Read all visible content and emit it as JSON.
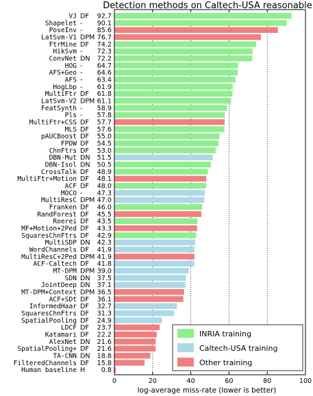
{
  "chart_data": {
    "type": "bar",
    "orientation": "horizontal",
    "title": "Detection methods on Caltech-USA reasonable set",
    "xlabel": "log-average miss-rate (lower is better)",
    "xlim": [
      0,
      100
    ],
    "xticks": [
      "0",
      "20",
      "40",
      "60",
      "80",
      "100"
    ],
    "grid": "dotted vertical lines at 20, 40, 60, 80",
    "legend_position": "bottom-right",
    "legend": [
      {
        "key": "inria",
        "label": "INRIA training",
        "color": "#90ee90"
      },
      {
        "key": "caltech",
        "label": "Caltech-USA training",
        "color": "#add8e6"
      },
      {
        "key": "other",
        "label": "Other training",
        "color": "#f08080"
      }
    ],
    "rows": [
      {
        "name": "VJ",
        "feature": "DF",
        "value": 92.7,
        "value_label": "92.7",
        "training": "inria"
      },
      {
        "name": "Shapelet",
        "feature": "-",
        "value": 90.1,
        "value_label": "90.1",
        "training": "inria"
      },
      {
        "name": "PoseInv",
        "feature": "-",
        "value": 85.6,
        "value_label": "85.6",
        "training": "other"
      },
      {
        "name": "LatSvm-V1",
        "feature": "DPM",
        "value": 76.7,
        "value_label": "76.7",
        "training": "other"
      },
      {
        "name": "FtrMine",
        "feature": "DF",
        "value": 74.2,
        "value_label": "74.2",
        "training": "inria"
      },
      {
        "name": "HikSvm",
        "feature": "-",
        "value": 72.3,
        "value_label": "72.3",
        "training": "inria"
      },
      {
        "name": "ConvNet",
        "feature": "DN",
        "value": 72.2,
        "value_label": "72.2",
        "training": "inria"
      },
      {
        "name": "HOG",
        "feature": "-",
        "value": 64.7,
        "value_label": "64.7",
        "training": "inria"
      },
      {
        "name": "AFS+Geo",
        "feature": "-",
        "value": 64.6,
        "value_label": "64.6",
        "training": "inria"
      },
      {
        "name": "AFS",
        "feature": "-",
        "value": 63.4,
        "value_label": "63.4",
        "training": "inria"
      },
      {
        "name": "HogLbp",
        "feature": "-",
        "value": 61.9,
        "value_label": "61.9",
        "training": "inria"
      },
      {
        "name": "MultiFtr",
        "feature": "DF",
        "value": 61.8,
        "value_label": "61.8",
        "training": "inria"
      },
      {
        "name": "LatSvm-V2",
        "feature": "DPM",
        "value": 61.1,
        "value_label": "61.1",
        "training": "inria"
      },
      {
        "name": "FeatSynth",
        "feature": "-",
        "value": 58.9,
        "value_label": "58.9",
        "training": "inria"
      },
      {
        "name": "Pls",
        "feature": "-",
        "value": 57.8,
        "value_label": "57.8",
        "training": "inria"
      },
      {
        "name": "MultiFtr+CSS",
        "feature": "DF",
        "value": 57.7,
        "value_label": "57.7",
        "training": "other"
      },
      {
        "name": "MLS",
        "feature": "DF",
        "value": 57.6,
        "value_label": "57.6",
        "training": "inria"
      },
      {
        "name": "pAUCBoost",
        "feature": "DF",
        "value": 55.0,
        "value_label": "55.0",
        "training": "inria"
      },
      {
        "name": "FPDW",
        "feature": "DF",
        "value": 54.5,
        "value_label": "54.5",
        "training": "inria"
      },
      {
        "name": "ChnFtrs",
        "feature": "DF",
        "value": 53.0,
        "value_label": "53.0",
        "training": "inria"
      },
      {
        "name": "DBN-Mut",
        "feature": "DN",
        "value": 51.5,
        "value_label": "51.5",
        "training": "caltech"
      },
      {
        "name": "DBN-Isol",
        "feature": "DN",
        "value": 50.5,
        "value_label": "50.5",
        "training": "inria"
      },
      {
        "name": "CrossTalk",
        "feature": "DF",
        "value": 48.9,
        "value_label": "48.9",
        "training": "inria"
      },
      {
        "name": "MultiFtr+Motion",
        "feature": "DF",
        "value": 48.1,
        "value_label": "48.1",
        "training": "other"
      },
      {
        "name": "ACF",
        "feature": "DF",
        "value": 48.0,
        "value_label": "48.0",
        "training": "inria"
      },
      {
        "name": "MOCO",
        "feature": "-",
        "value": 47.3,
        "value_label": "47.3",
        "training": "caltech"
      },
      {
        "name": "MultiResC",
        "feature": "DPM",
        "value": 47.0,
        "value_label": "47.0",
        "training": "caltech"
      },
      {
        "name": "Franken",
        "feature": "DF",
        "value": 46.0,
        "value_label": "46.0",
        "training": "inria"
      },
      {
        "name": "RandForest",
        "feature": "DF",
        "value": 45.5,
        "value_label": "45.5",
        "training": "other"
      },
      {
        "name": "Roerei",
        "feature": "DF",
        "value": 43.5,
        "value_label": "43.5",
        "training": "inria"
      },
      {
        "name": "MF+Motion+2Ped",
        "feature": "DF",
        "value": 43.3,
        "value_label": "43.3",
        "training": "other"
      },
      {
        "name": "SquaresChnFtrs",
        "feature": "DF",
        "value": 42.9,
        "value_label": "42.9",
        "training": "inria"
      },
      {
        "name": "MultiSDP",
        "feature": "DN",
        "value": 42.3,
        "value_label": "42.3",
        "training": "caltech"
      },
      {
        "name": "WordChannels",
        "feature": "DF",
        "value": 41.9,
        "value_label": "41.9",
        "training": "caltech"
      },
      {
        "name": "MultiResC+2Ped",
        "feature": "DPM",
        "value": 41.9,
        "value_label": "41.9",
        "training": "other"
      },
      {
        "name": "ACF-Caltech",
        "feature": "DF",
        "value": 41.8,
        "value_label": "41.8",
        "training": "caltech"
      },
      {
        "name": "MT-DPM",
        "feature": "DPM",
        "value": 39.0,
        "value_label": "39.0",
        "training": "caltech"
      },
      {
        "name": "SDN",
        "feature": "DN",
        "value": 37.5,
        "value_label": "37.5",
        "training": "caltech"
      },
      {
        "name": "JointDeep",
        "feature": "DN",
        "value": 37.1,
        "value_label": "37.1",
        "training": "caltech"
      },
      {
        "name": "MT-DPM+Context",
        "feature": "DPM",
        "value": 36.5,
        "value_label": "36.5",
        "training": "other"
      },
      {
        "name": "ACF+SDt",
        "feature": "DF",
        "value": 36.1,
        "value_label": "36.1",
        "training": "other"
      },
      {
        "name": "InformedHaar",
        "feature": "DF",
        "value": 32.7,
        "value_label": "32.7",
        "training": "caltech"
      },
      {
        "name": "SquaresChnFtrs",
        "feature": "DF",
        "value": 31.3,
        "value_label": "31.3",
        "training": "caltech"
      },
      {
        "name": "SpatialPooling",
        "feature": "DF",
        "value": 24.9,
        "value_label": "24.9",
        "training": "caltech"
      },
      {
        "name": "LDCF",
        "feature": "DF",
        "value": 23.7,
        "value_label": "23.7",
        "training": "other"
      },
      {
        "name": "Katamari",
        "feature": "DF",
        "value": 22.2,
        "value_label": "22.2",
        "training": "other"
      },
      {
        "name": "AlexNet",
        "feature": "DN",
        "value": 21.6,
        "value_label": "21.6",
        "training": "other"
      },
      {
        "name": "SpatialPooling+",
        "feature": "DF",
        "value": 21.6,
        "value_label": "21.6",
        "training": "other"
      },
      {
        "name": "TA-CNN",
        "feature": "DN",
        "value": 18.8,
        "value_label": "18.8",
        "training": "other"
      },
      {
        "name": "FilteredChannels",
        "feature": "DF",
        "value": 15.8,
        "value_label": "15.8",
        "training": "other"
      },
      {
        "name": "Human baseline",
        "feature": "H",
        "value": 0.8,
        "value_label": "0.8",
        "training": "other"
      }
    ]
  }
}
